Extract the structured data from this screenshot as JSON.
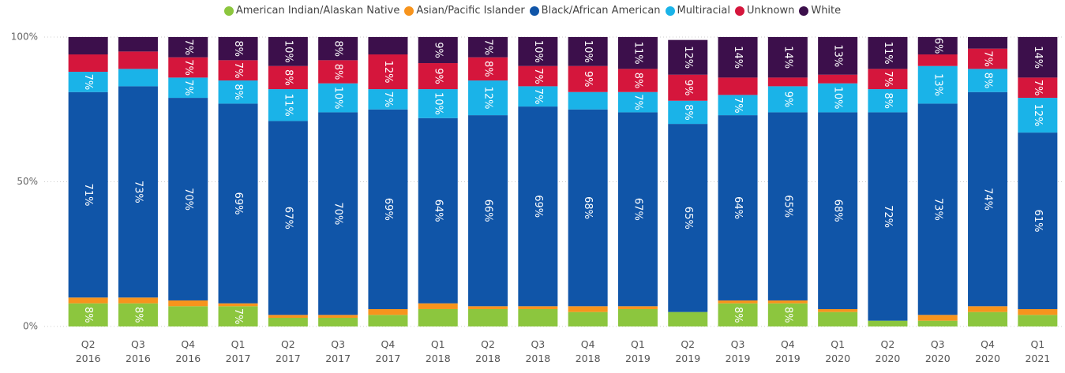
{
  "chart_data": {
    "type": "stacked_bar_100",
    "categories": [
      "Q2 2016",
      "Q3 2016",
      "Q4 2016",
      "Q1 2017",
      "Q2 2017",
      "Q3 2017",
      "Q4 2017",
      "Q1 2018",
      "Q2 2018",
      "Q3 2018",
      "Q4 2018",
      "Q1 2019",
      "Q2 2019",
      "Q3 2019",
      "Q4 2019",
      "Q1 2020",
      "Q2 2020",
      "Q3 2020",
      "Q4 2020",
      "Q1 2021"
    ],
    "series": [
      {
        "name": "American Indian/Alaskan Native",
        "color": "#8cc63e",
        "values": [
          8,
          8,
          7,
          7,
          3,
          3,
          4,
          6,
          6,
          6,
          5,
          6,
          5,
          8,
          8,
          5,
          2,
          2,
          5,
          4
        ],
        "value_labels": [
          "8%",
          "8%",
          null,
          "7%",
          null,
          null,
          null,
          null,
          null,
          null,
          null,
          null,
          null,
          "8%",
          "8%",
          null,
          null,
          null,
          null,
          null
        ]
      },
      {
        "name": "Asian/Pacific Islander",
        "color": "#f7941d",
        "values": [
          2,
          2,
          2,
          1,
          1,
          1,
          2,
          2,
          1,
          1,
          2,
          1,
          0,
          1,
          1,
          1,
          0,
          2,
          2,
          2
        ],
        "value_labels": [
          null,
          null,
          null,
          null,
          null,
          null,
          null,
          null,
          null,
          null,
          null,
          null,
          null,
          null,
          null,
          null,
          null,
          null,
          null,
          null
        ]
      },
      {
        "name": "Black/African American",
        "color": "#1055a8",
        "values": [
          71,
          73,
          70,
          69,
          67,
          70,
          69,
          64,
          66,
          69,
          68,
          67,
          65,
          64,
          65,
          68,
          72,
          73,
          74,
          61
        ],
        "value_labels": [
          "71%",
          "73%",
          "70%",
          "69%",
          "67%",
          "70%",
          "69%",
          "64%",
          "66%",
          "69%",
          "68%",
          "67%",
          "65%",
          "64%",
          "65%",
          "68%",
          "72%",
          "73%",
          "74%",
          "61%"
        ]
      },
      {
        "name": "Multiracial",
        "color": "#1ab3e8",
        "values": [
          7,
          6,
          7,
          8,
          11,
          10,
          7,
          10,
          12,
          7,
          6,
          7,
          8,
          7,
          9,
          10,
          8,
          13,
          8,
          12
        ],
        "value_labels": [
          "7%",
          null,
          "7%",
          "8%",
          "11%",
          "10%",
          "7%",
          "10%",
          "12%",
          "7%",
          null,
          "7%",
          "8%",
          "7%",
          "9%",
          "10%",
          "8%",
          "13%",
          "8%",
          "12%"
        ]
      },
      {
        "name": "Unknown",
        "color": "#d5163c",
        "values": [
          6,
          6,
          7,
          7,
          8,
          8,
          12,
          9,
          8,
          7,
          9,
          8,
          9,
          6,
          3,
          3,
          7,
          4,
          7,
          7
        ],
        "value_labels": [
          null,
          null,
          "7%",
          "7%",
          "8%",
          "8%",
          "12%",
          "9%",
          "8%",
          "7%",
          "9%",
          "8%",
          "9%",
          null,
          null,
          null,
          "7%",
          null,
          "7%",
          "7%"
        ]
      },
      {
        "name": "White",
        "color": "#3c0f4b",
        "values": [
          6,
          5,
          7,
          8,
          10,
          8,
          6,
          9,
          7,
          10,
          10,
          11,
          12,
          14,
          14,
          13,
          11,
          6,
          4,
          14
        ],
        "value_labels": [
          null,
          null,
          "7%",
          "8%",
          "10%",
          "8%",
          null,
          "9%",
          "7%",
          "10%",
          "10%",
          "11%",
          "12%",
          "14%",
          "14%",
          "13%",
          "11%",
          "6%",
          null,
          "14%"
        ]
      }
    ],
    "ylim": [
      0,
      100
    ],
    "yticks": [
      {
        "value": 0,
        "label": "0%"
      },
      {
        "value": 50,
        "label": "50%"
      },
      {
        "value": 100,
        "label": "100%"
      }
    ],
    "grid": true,
    "legend": "top"
  }
}
